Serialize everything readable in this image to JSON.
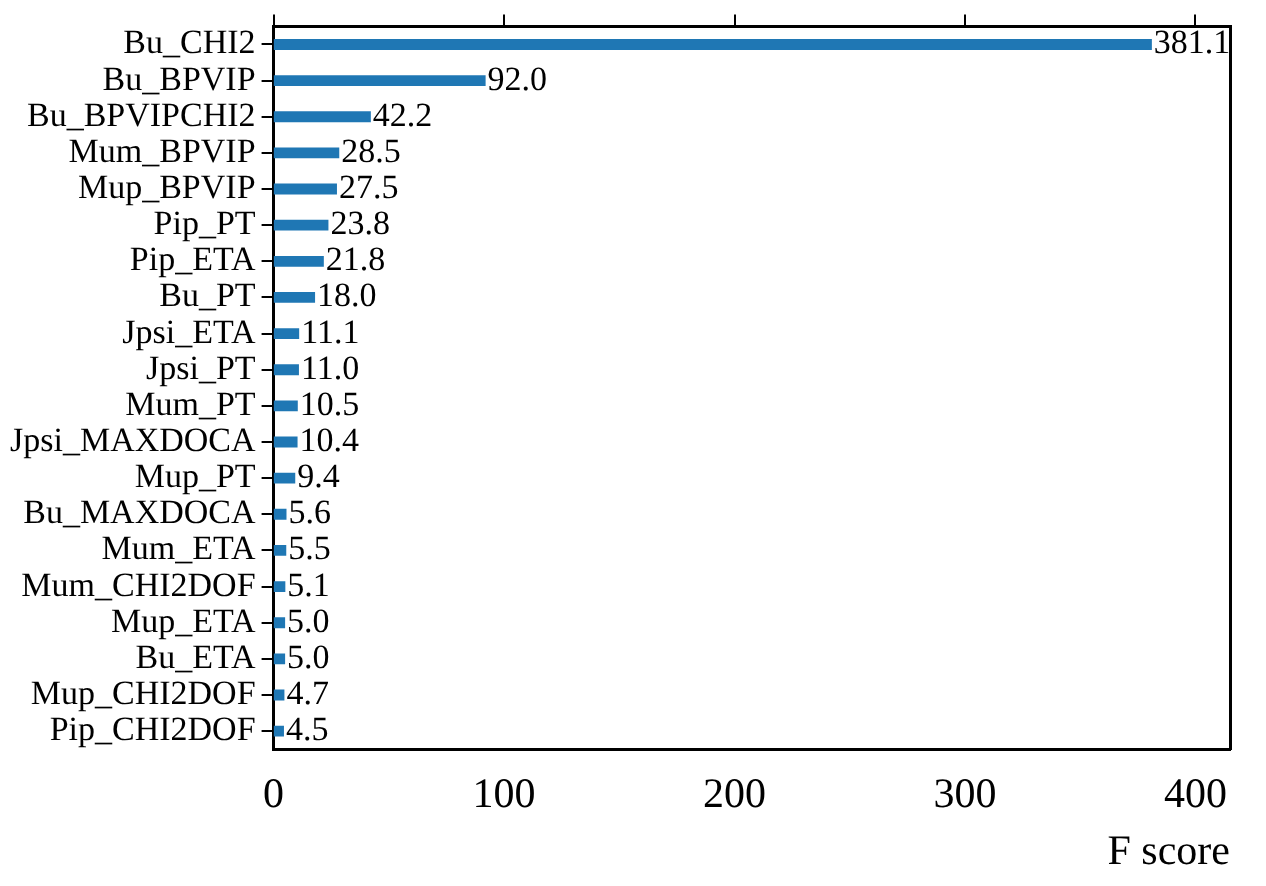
{
  "chart_data": {
    "type": "bar",
    "orientation": "horizontal",
    "xlabel": "F score",
    "categories": [
      "Bu_CHI2",
      "Bu_BPVIP",
      "Bu_BPVIPCHI2",
      "Mum_BPVIP",
      "Mup_BPVIP",
      "Pip_PT",
      "Pip_ETA",
      "Bu_PT",
      "Jpsi_ETA",
      "Jpsi_PT",
      "Mum_PT",
      "Jpsi_MAXDOCA",
      "Mup_PT",
      "Bu_MAXDOCA",
      "Mum_ETA",
      "Mum_CHI2DOF",
      "Mup_ETA",
      "Bu_ETA",
      "Mup_CHI2DOF",
      "Pip_CHI2DOF"
    ],
    "values": [
      381.1,
      92.0,
      42.2,
      28.5,
      27.5,
      23.8,
      21.8,
      18.0,
      11.1,
      11.0,
      10.5,
      10.4,
      9.4,
      5.6,
      5.5,
      5.1,
      5.0,
      5.0,
      4.7,
      4.5
    ],
    "value_labels": [
      "381.1",
      "92.0",
      "42.2",
      "28.5",
      "27.5",
      "23.8",
      "21.8",
      "18.0",
      "11.1",
      "11.0",
      "10.5",
      "10.4",
      "9.4",
      "5.6",
      "5.5",
      "5.1",
      "5.0",
      "5.0",
      "4.7",
      "4.5"
    ],
    "color": "#1f77b4",
    "xlim": [
      0,
      415
    ],
    "xticks": [
      0,
      100,
      200,
      300,
      400
    ],
    "grid": false,
    "legend": false
  }
}
